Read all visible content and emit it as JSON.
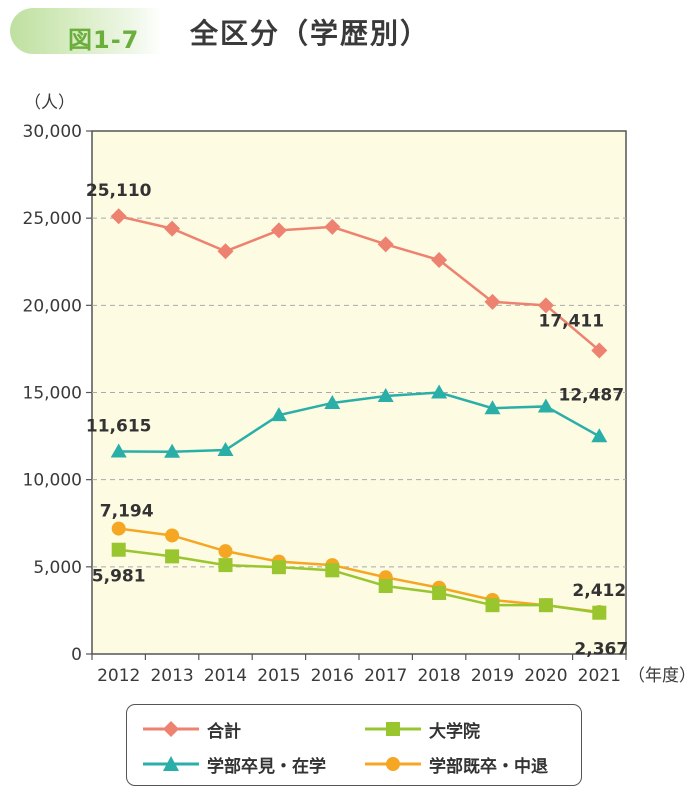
{
  "header": {
    "figure_label": "図1-7",
    "title": "全区分（学歴別）"
  },
  "chart_data": {
    "type": "line",
    "y_unit_label": "（人）",
    "x_unit_label": "（年度）",
    "x": [
      "2012",
      "2013",
      "2014",
      "2015",
      "2016",
      "2017",
      "2018",
      "2019",
      "2020",
      "2021"
    ],
    "ylim": [
      0,
      30000
    ],
    "yticks": [
      0,
      5000,
      10000,
      15000,
      20000,
      25000,
      30000
    ],
    "ytick_labels": [
      "0",
      "5,000",
      "10,000",
      "15,000",
      "20,000",
      "25,000",
      "30,000"
    ],
    "grid": "horizontal-dashed",
    "background_color": "#fdfbe2",
    "legend_position": "bottom",
    "series": [
      {
        "name": "合計",
        "marker": "diamond",
        "color": "#ee8270",
        "values": [
          25110,
          24400,
          23100,
          24300,
          24500,
          23500,
          22600,
          20200,
          20000,
          17411
        ]
      },
      {
        "name": "学部卒見・在学",
        "marker": "triangle",
        "color": "#2aafa8",
        "values": [
          11615,
          11600,
          11700,
          13700,
          14400,
          14800,
          15000,
          14100,
          14200,
          12487
        ]
      },
      {
        "name": "大学院",
        "marker": "square",
        "color": "#99c52e",
        "values": [
          5981,
          5600,
          5100,
          4980,
          4800,
          3900,
          3500,
          2800,
          2800,
          2367
        ]
      },
      {
        "name": "学部既卒・中退",
        "marker": "circle",
        "color": "#f5a623",
        "values": [
          7194,
          6800,
          5900,
          5300,
          5100,
          4400,
          3800,
          3100,
          2800,
          2412
        ]
      }
    ],
    "data_labels": [
      {
        "text": "25,110",
        "series": 0,
        "index": 0
      },
      {
        "text": "17,411",
        "series": 0,
        "index": 9
      },
      {
        "text": "11,615",
        "series": 1,
        "index": 0
      },
      {
        "text": "12,487",
        "series": 1,
        "index": 9
      },
      {
        "text": "5,981",
        "series": 2,
        "index": 0
      },
      {
        "text": "2,367",
        "series": 2,
        "index": 9
      },
      {
        "text": "7,194",
        "series": 3,
        "index": 0
      },
      {
        "text": "2,412",
        "series": 3,
        "index": 9
      }
    ]
  }
}
